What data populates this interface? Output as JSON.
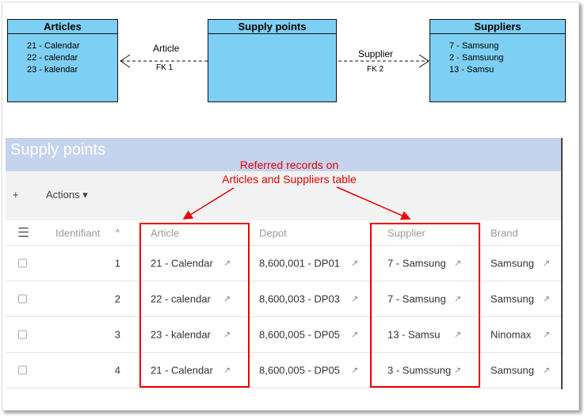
{
  "diagram": {
    "articles": {
      "title": "Articles",
      "items": [
        "21 - Calendar",
        "22 - calendar",
        "23 - kalendar"
      ]
    },
    "supply_points": {
      "title": "Supply points"
    },
    "suppliers": {
      "title": "Suppliers",
      "items": [
        "7 - Samsung",
        "2 - Samsuung",
        "13 - Samsu"
      ]
    },
    "link1": {
      "label": "Article",
      "fk": "FK 1"
    },
    "link2": {
      "label": "Supplier",
      "fk": "FK 2"
    }
  },
  "panel": {
    "title": "Supply points",
    "add": "+",
    "actions": "Actions ▾"
  },
  "annotation": {
    "line1": "Referred records on",
    "line2": "Articles and Suppliers table",
    "color": "#e00000"
  },
  "table": {
    "columns": [
      "Identifiant",
      "Article",
      "Depot",
      "Supplier",
      "Brand"
    ],
    "rows": [
      {
        "id": "1",
        "article": "21 - Calendar",
        "depot": "8,600,001 - DP01",
        "supplier": "7 - Samsung",
        "brand": "Samsung"
      },
      {
        "id": "2",
        "article": "22 - calendar",
        "depot": "8,600,003 - DP03",
        "supplier": "7 - Samsung",
        "brand": "Samsung"
      },
      {
        "id": "3",
        "article": "23 - kalendar",
        "depot": "8,600,005 - DP05",
        "supplier": "13 - Samsu",
        "brand": "Ninomax"
      },
      {
        "id": "4",
        "article": "21 - Calendar",
        "depot": "8,600,005 - DP05",
        "supplier": "3 - Sumssung",
        "brand": "Samsung"
      }
    ]
  }
}
